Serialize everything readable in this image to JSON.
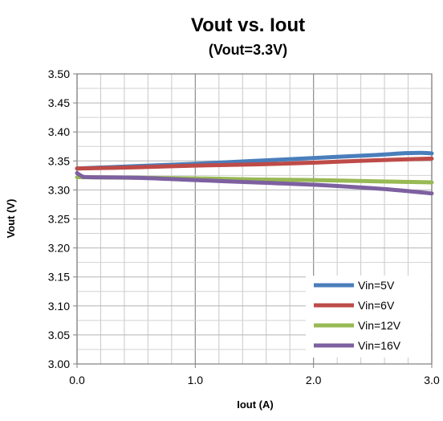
{
  "chart_data": {
    "type": "line",
    "title": "Vout vs. Iout",
    "subtitle": "(Vout=3.3V)",
    "xlabel": "Iout (A)",
    "ylabel": "Vout (V)",
    "xlim": [
      0,
      3
    ],
    "ylim": [
      3.0,
      3.5
    ],
    "x_ticks": [
      "0.0",
      "1.0",
      "2.0",
      "3.0"
    ],
    "y_ticks": [
      "3.00",
      "3.05",
      "3.10",
      "3.15",
      "3.20",
      "3.25",
      "3.30",
      "3.35",
      "3.40",
      "3.45",
      "3.50"
    ],
    "grid": true,
    "legend_position": "bottom-right",
    "series": [
      {
        "name": "Vin=5V",
        "color": "#4a7ebb",
        "x": [
          0,
          0.5,
          1.0,
          1.5,
          2.0,
          2.5,
          2.75,
          2.9,
          3.0
        ],
        "y": [
          3.337,
          3.341,
          3.345,
          3.35,
          3.355,
          3.36,
          3.363,
          3.364,
          3.363
        ]
      },
      {
        "name": "Vin=6V",
        "color": "#be4b48",
        "x": [
          0,
          0.5,
          1.0,
          1.5,
          2.0,
          2.5,
          3.0
        ],
        "y": [
          3.337,
          3.339,
          3.342,
          3.344,
          3.347,
          3.351,
          3.354
        ]
      },
      {
        "name": "Vin=12V",
        "color": "#98b954",
        "x": [
          0,
          0.5,
          1.0,
          1.5,
          2.0,
          2.5,
          3.0
        ],
        "y": [
          3.322,
          3.321,
          3.32,
          3.318,
          3.317,
          3.315,
          3.313
        ]
      },
      {
        "name": "Vin=16V",
        "color": "#7d60a0",
        "x": [
          0,
          0.05,
          0.1,
          0.5,
          1.0,
          1.5,
          2.0,
          2.5,
          2.8,
          3.0
        ],
        "y": [
          3.329,
          3.323,
          3.322,
          3.321,
          3.317,
          3.313,
          3.309,
          3.303,
          3.298,
          3.294
        ]
      }
    ]
  }
}
